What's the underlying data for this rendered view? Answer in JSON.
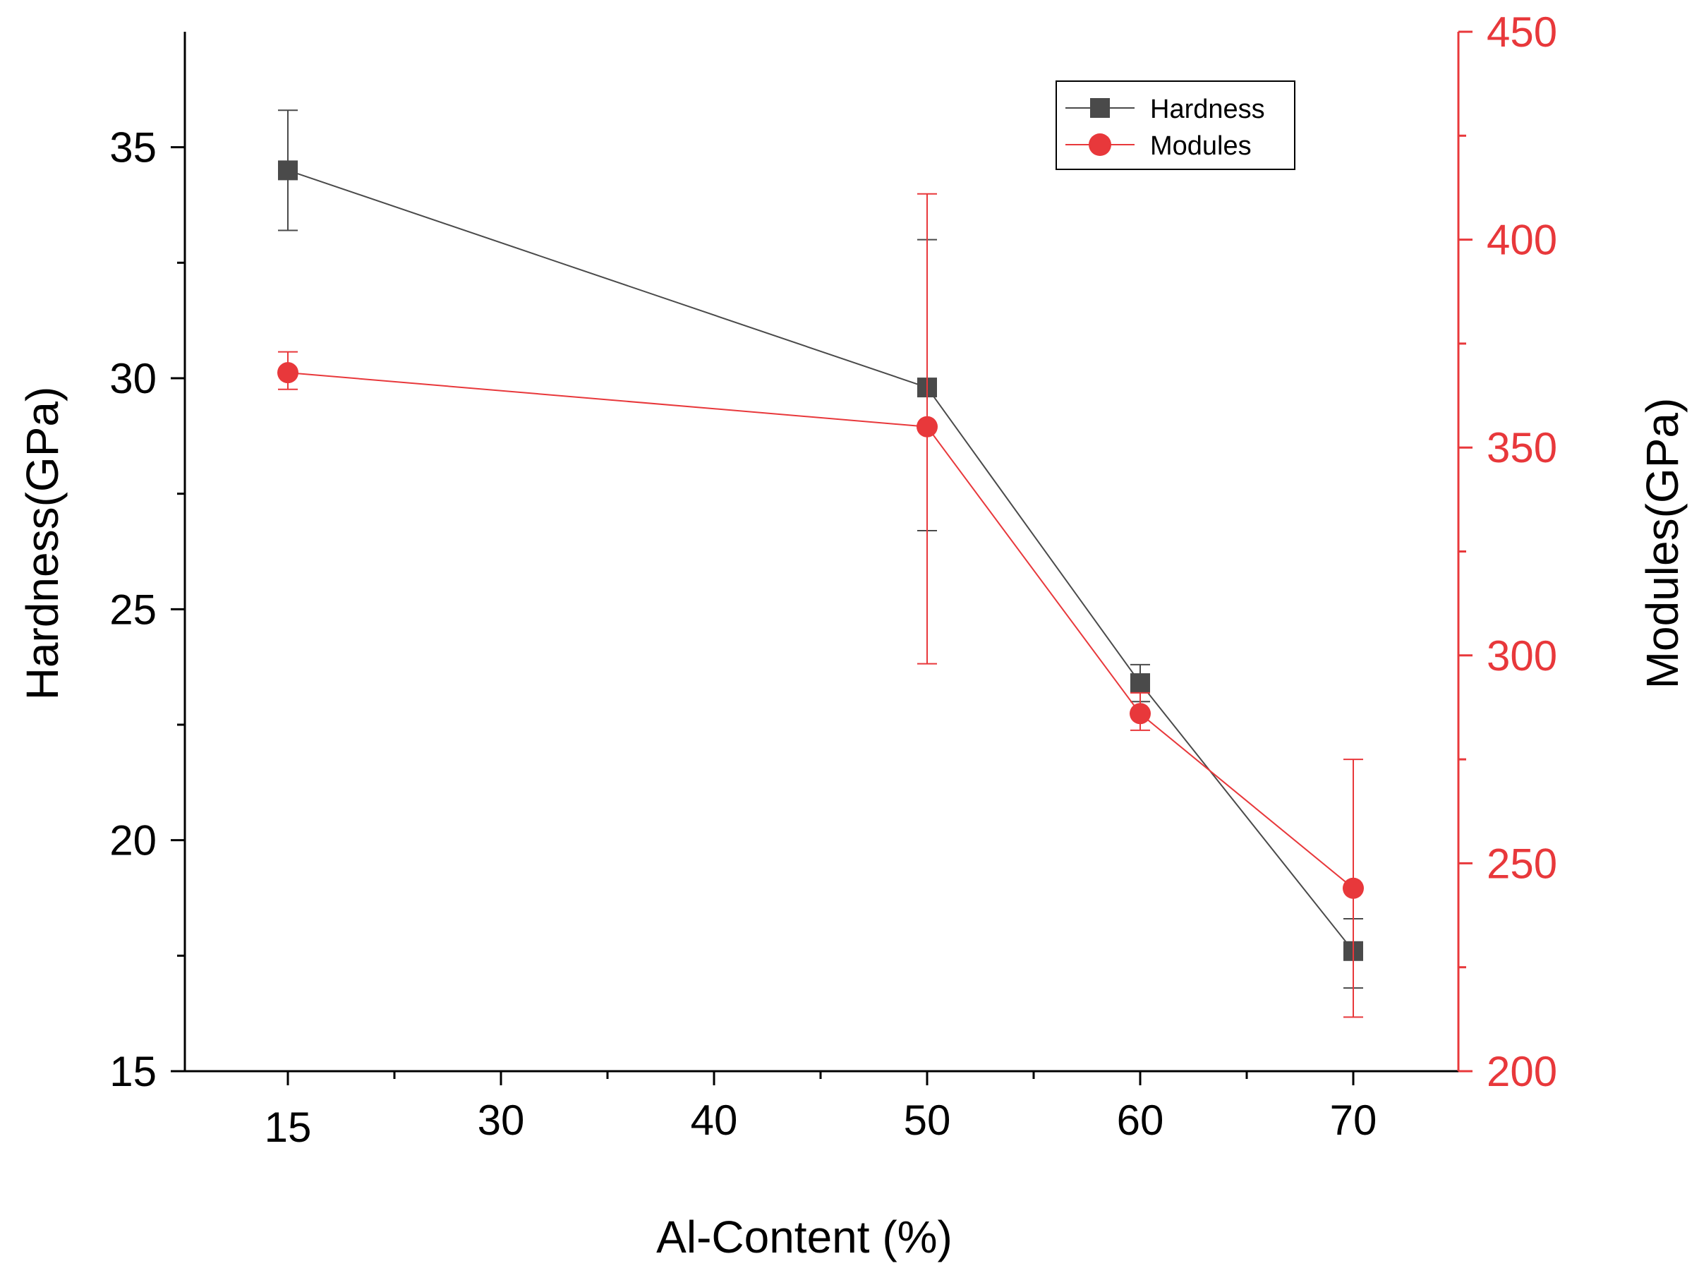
{
  "chart_data": {
    "type": "line",
    "x": [
      15,
      50,
      60,
      70
    ],
    "x_tick_labels": [
      "15",
      "30",
      "40",
      "50",
      "60",
      "70"
    ],
    "xlabel": "Al-Content (%)",
    "ylabel_left": "Hardness(GPa)",
    "ylabel_right": "Modules(GPa)",
    "ylim_left": [
      15,
      37.5
    ],
    "ylim_right": [
      200,
      450
    ],
    "yticks_left": [
      15,
      20,
      25,
      30,
      35
    ],
    "yticks_right": [
      200,
      250,
      300,
      350,
      400,
      450
    ],
    "legend_position": "top-right",
    "series": [
      {
        "name": "Hardness",
        "axis": "left",
        "marker": "square",
        "color": "#4a4a4a",
        "values": [
          34.5,
          29.8,
          23.4,
          17.6
        ],
        "error_low": [
          33.2,
          26.7,
          23.0,
          16.8
        ],
        "error_high": [
          35.8,
          33.0,
          23.8,
          18.3
        ]
      },
      {
        "name": "Modules",
        "axis": "right",
        "marker": "circle",
        "color": "#e8383b",
        "values": [
          368,
          355,
          286,
          244
        ],
        "error_low": [
          364,
          298,
          282,
          213
        ],
        "error_high": [
          373,
          411,
          291,
          275
        ]
      }
    ]
  }
}
